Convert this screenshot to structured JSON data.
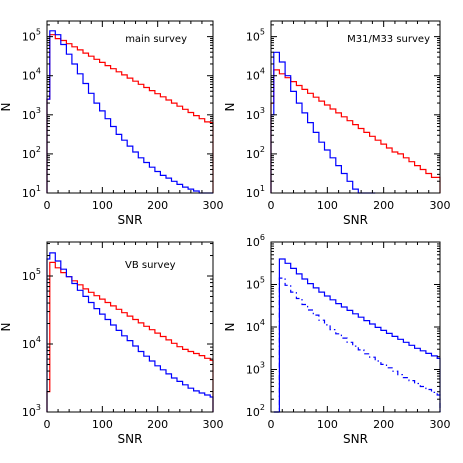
{
  "chart_data": [
    {
      "type": "line",
      "step": true,
      "log_y": true,
      "title": "main survey",
      "xlabel": "SNR",
      "ylabel": "N",
      "xlim": [
        0,
        300
      ],
      "ylim": [
        1,
        5.4
      ],
      "x_ticks": [
        0,
        100,
        200,
        300
      ],
      "x_tick_labels": [
        "0",
        "100",
        "200",
        "300"
      ],
      "y_tick_exponents": [
        1,
        2,
        3,
        4,
        5
      ],
      "y_tick_base": "10",
      "bin_edges": [
        0,
        5,
        15,
        25,
        35,
        45,
        55,
        65,
        75,
        85,
        95,
        105,
        115,
        125,
        135,
        145,
        155,
        165,
        175,
        185,
        195,
        205,
        215,
        225,
        235,
        245,
        255,
        265,
        275,
        285,
        295,
        300
      ],
      "series": [
        {
          "color": "#ff0000",
          "dash": "solid",
          "log10_values": [
            3.4,
            5.05,
            4.95,
            4.9,
            4.82,
            4.74,
            4.66,
            4.58,
            4.5,
            4.42,
            4.34,
            4.26,
            4.18,
            4.1,
            4.02,
            3.94,
            3.86,
            3.78,
            3.7,
            3.62,
            3.54,
            3.46,
            3.38,
            3.3,
            3.22,
            3.14,
            3.06,
            2.98,
            2.9,
            2.82,
            2.8
          ]
        },
        {
          "color": "#0000ff",
          "dash": "solid",
          "log10_values": [
            3.4,
            5.15,
            5.05,
            4.8,
            4.55,
            4.3,
            4.05,
            3.8,
            3.55,
            3.3,
            3.1,
            2.9,
            2.7,
            2.5,
            2.35,
            2.2,
            2.05,
            1.9,
            1.78,
            1.66,
            1.55,
            1.45,
            1.38,
            1.3,
            1.22,
            1.15,
            1.1,
            1.05,
            1.0,
            1.0,
            0.85
          ]
        }
      ]
    },
    {
      "type": "line",
      "step": true,
      "log_y": true,
      "title": "M31/M33 survey",
      "xlabel": "SNR",
      "ylabel": "N",
      "xlim": [
        0,
        300
      ],
      "ylim": [
        1,
        5.4
      ],
      "x_ticks": [
        0,
        100,
        200,
        300
      ],
      "x_tick_labels": [
        "0",
        "100",
        "200",
        "300"
      ],
      "y_tick_exponents": [
        1,
        2,
        3,
        4,
        5
      ],
      "y_tick_base": "10",
      "bin_edges": [
        0,
        5,
        15,
        25,
        35,
        45,
        55,
        65,
        75,
        85,
        95,
        105,
        115,
        125,
        135,
        145,
        155,
        165,
        175,
        185,
        195,
        205,
        215,
        225,
        235,
        245,
        255,
        265,
        275,
        285,
        300
      ],
      "series": [
        {
          "color": "#ff0000",
          "dash": "solid",
          "log10_values": [
            3.3,
            4.15,
            4.05,
            3.95,
            3.85,
            3.75,
            3.65,
            3.55,
            3.45,
            3.35,
            3.25,
            3.15,
            3.05,
            2.95,
            2.85,
            2.75,
            2.65,
            2.55,
            2.45,
            2.35,
            2.25,
            2.15,
            2.05,
            2.0,
            1.9,
            1.8,
            1.7,
            1.6,
            1.5,
            1.4
          ]
        },
        {
          "color": "#0000ff",
          "dash": "solid",
          "log10_values": [
            3.0,
            4.6,
            4.35,
            4.0,
            3.6,
            3.3,
            3.05,
            2.8,
            2.55,
            2.3,
            2.1,
            1.9,
            1.7,
            1.5,
            1.3,
            1.1,
            0.9,
            0.8,
            0.7
          ]
        }
      ]
    },
    {
      "type": "line",
      "step": true,
      "log_y": true,
      "title": "VB survey",
      "xlabel": "SNR",
      "ylabel": "N",
      "xlim": [
        0,
        300
      ],
      "ylim": [
        3,
        5.5
      ],
      "x_ticks": [
        0,
        100,
        200,
        300
      ],
      "x_tick_labels": [
        "0",
        "100",
        "200",
        "300"
      ],
      "y_tick_exponents": [
        3,
        4,
        5
      ],
      "y_tick_base": "10",
      "bin_edges": [
        0,
        5,
        15,
        25,
        35,
        45,
        55,
        65,
        75,
        85,
        95,
        105,
        115,
        125,
        135,
        145,
        155,
        165,
        175,
        185,
        195,
        205,
        215,
        225,
        235,
        245,
        255,
        265,
        275,
        285,
        295,
        300
      ],
      "series": [
        {
          "color": "#ff0000",
          "dash": "solid",
          "log10_values": [
            3.3,
            5.2,
            5.12,
            5.05,
            4.99,
            4.93,
            4.87,
            4.81,
            4.76,
            4.71,
            4.66,
            4.61,
            4.56,
            4.51,
            4.46,
            4.41,
            4.36,
            4.31,
            4.26,
            4.21,
            4.16,
            4.11,
            4.06,
            4.01,
            3.96,
            3.92,
            3.89,
            3.86,
            3.83,
            3.79,
            3.76
          ]
        },
        {
          "color": "#0000ff",
          "dash": "solid",
          "log10_values": [
            5.25,
            5.34,
            5.22,
            5.1,
            4.99,
            4.89,
            4.79,
            4.7,
            4.61,
            4.52,
            4.44,
            4.36,
            4.28,
            4.2,
            4.12,
            4.05,
            3.97,
            3.89,
            3.82,
            3.75,
            3.68,
            3.62,
            3.56,
            3.5,
            3.45,
            3.4,
            3.35,
            3.31,
            3.28,
            3.25,
            3.22
          ]
        }
      ]
    },
    {
      "type": "line",
      "step": true,
      "log_y": true,
      "title": "",
      "xlabel": "SNR",
      "ylabel": "N",
      "xlim": [
        0,
        300
      ],
      "ylim": [
        2,
        6
      ],
      "x_ticks": [
        0,
        100,
        200,
        300
      ],
      "x_tick_labels": [
        "0",
        "100",
        "200",
        "300"
      ],
      "y_tick_exponents": [
        2,
        3,
        4,
        5,
        6
      ],
      "y_tick_base": "10",
      "bin_edges": [
        5,
        15,
        25,
        35,
        45,
        55,
        65,
        75,
        85,
        95,
        105,
        115,
        125,
        135,
        145,
        155,
        165,
        175,
        185,
        195,
        205,
        215,
        225,
        235,
        245,
        255,
        265,
        275,
        285,
        295,
        300
      ],
      "series": [
        {
          "color": "#0000ff",
          "dash": "solid",
          "log10_values": [
            2.0,
            5.6,
            5.5,
            5.38,
            5.25,
            5.13,
            5.02,
            4.92,
            4.82,
            4.73,
            4.64,
            4.55,
            4.47,
            4.39,
            4.31,
            4.23,
            4.15,
            4.07,
            3.99,
            3.92,
            3.85,
            3.78,
            3.71,
            3.64,
            3.57,
            3.5,
            3.44,
            3.38,
            3.32,
            3.26
          ]
        },
        {
          "color": "#0000ff",
          "dash": "dashed",
          "log10_values": [
            2.0,
            5.15,
            4.98,
            4.82,
            4.67,
            4.53,
            4.4,
            4.28,
            4.16,
            4.05,
            3.94,
            3.84,
            3.74,
            3.64,
            3.55,
            3.46,
            3.37,
            3.29,
            3.2,
            3.12,
            3.04,
            2.96,
            2.88,
            2.81,
            2.74,
            2.67,
            2.6,
            2.53,
            2.46,
            2.4
          ]
        }
      ]
    }
  ]
}
